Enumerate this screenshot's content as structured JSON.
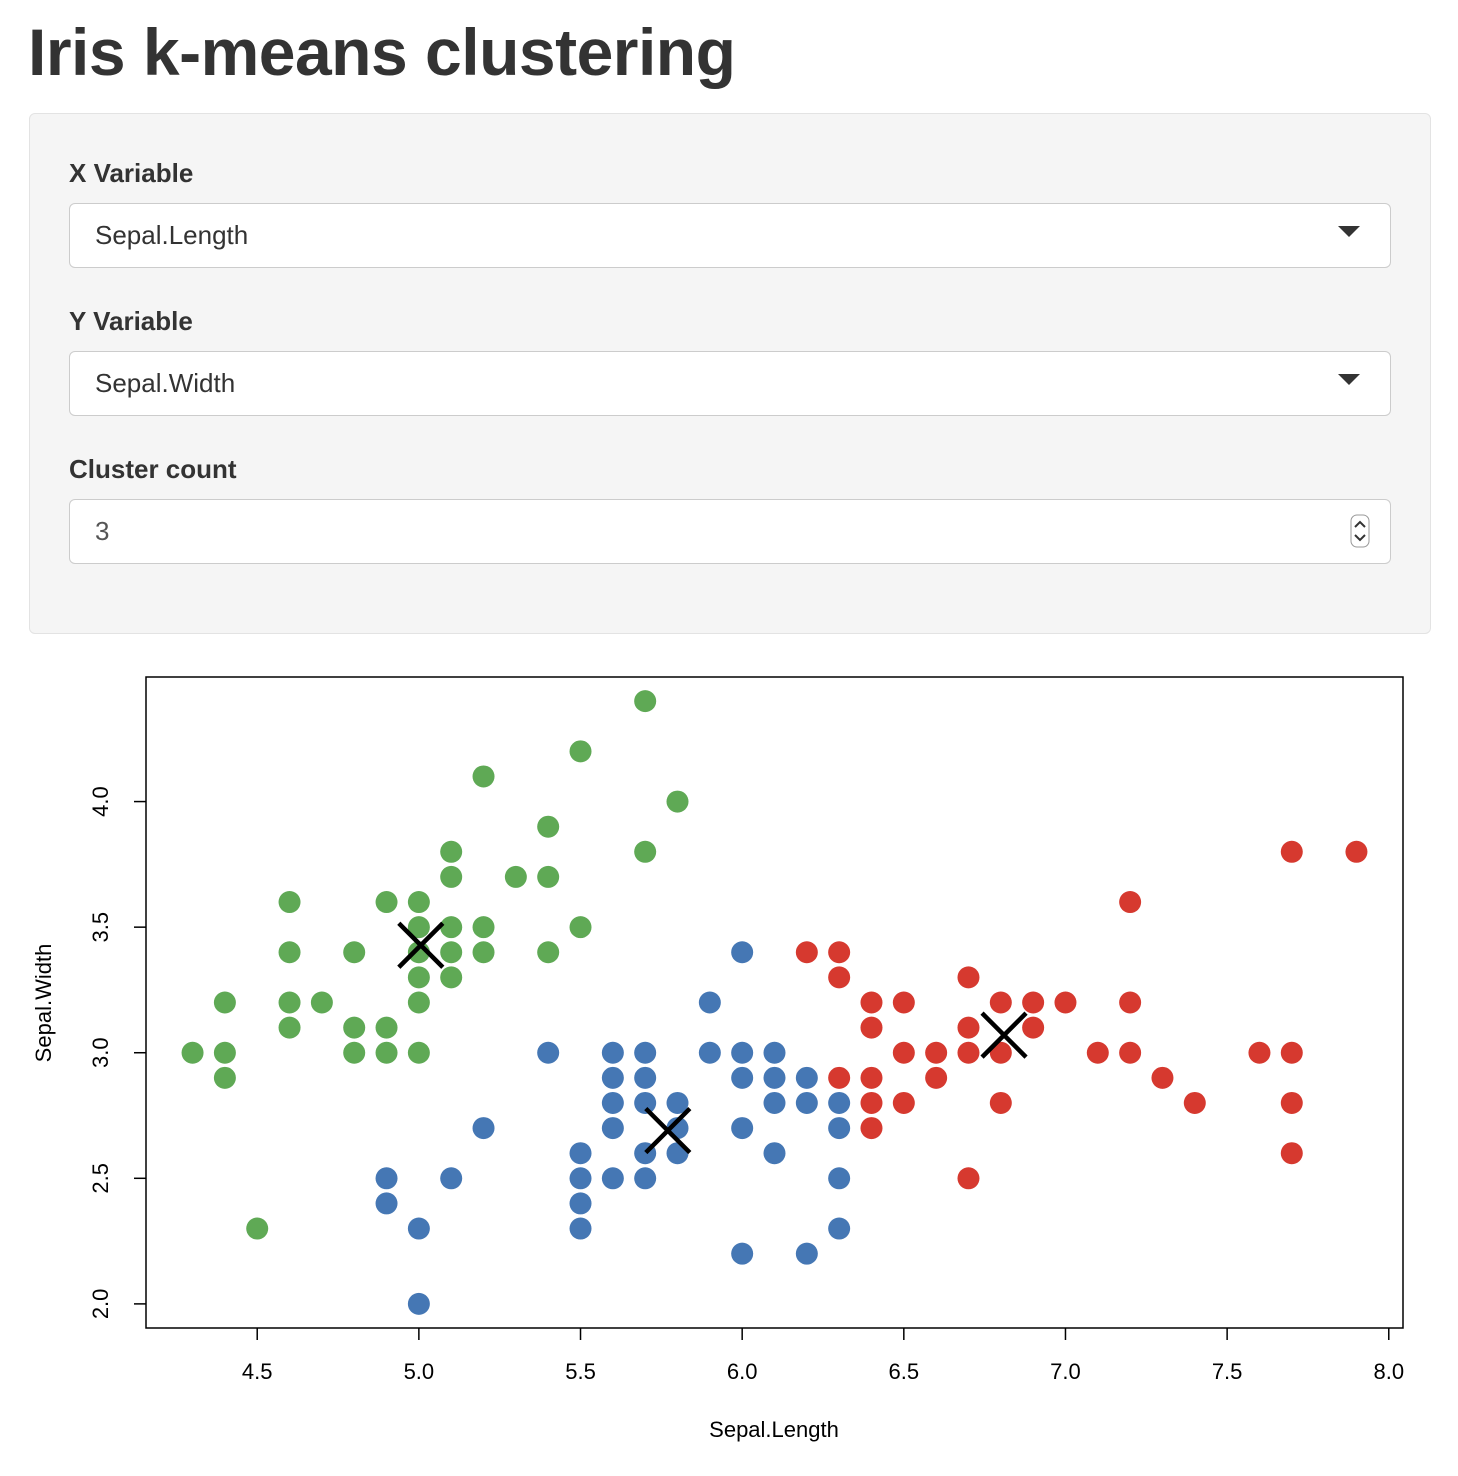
{
  "header": {
    "title": "Iris k-means clustering"
  },
  "controls": [
    {
      "label": "X Variable",
      "value": "Sepal.Length"
    },
    {
      "label": "Y Variable",
      "value": "Sepal.Width"
    },
    {
      "label": "Cluster count",
      "value": "3"
    }
  ],
  "chart_data": {
    "type": "scatter",
    "x_label": "Sepal.Length",
    "y_label": "Sepal.Width",
    "xlim": [
      4.156,
      8.044
    ],
    "ylim": [
      1.904,
      4.496
    ],
    "xticks": [
      4.5,
      {
        "value": 5,
        "label": "5.0"
      },
      5.5,
      {
        "value": 6,
        "label": "6.0"
      },
      6.5,
      {
        "value": 7,
        "label": "7.0"
      },
      7.5,
      {
        "value": 8,
        "label": "8.0"
      }
    ],
    "yticks": [
      {
        "value": 2,
        "label": "2.0"
      },
      2.5,
      {
        "value": 3,
        "label": "3.0"
      },
      3.5,
      {
        "value": 4,
        "label": "4.0"
      }
    ],
    "series": [
      {
        "color": "#5fa955",
        "marker": "circle",
        "x": [
          4.3,
          4.4,
          4.4,
          4.4,
          4.5,
          4.6,
          4.6,
          4.6,
          4.6,
          4.7,
          4.8,
          4.8,
          4.8,
          4.9,
          4.9,
          4.9,
          5.0,
          5.0,
          5.0,
          5.0,
          5.0,
          5.0,
          5.1,
          5.1,
          5.1,
          5.1,
          5.1,
          5.2,
          5.2,
          5.2,
          5.3,
          5.4,
          5.4,
          5.4,
          5.5,
          5.5,
          5.7,
          5.7,
          5.8
        ],
        "values": [
          3.0,
          3.0,
          3.2,
          2.9,
          2.3,
          3.6,
          3.4,
          3.2,
          3.1,
          3.2,
          3.4,
          3.1,
          3.0,
          3.6,
          3.1,
          3.0,
          3.6,
          3.5,
          3.4,
          3.3,
          3.2,
          3.0,
          3.8,
          3.7,
          3.5,
          3.4,
          3.3,
          4.1,
          3.5,
          3.4,
          3.7,
          3.9,
          3.7,
          3.4,
          4.2,
          3.5,
          4.4,
          3.8,
          4.0
        ]
      },
      {
        "color": "#4577b4",
        "marker": "circle",
        "x": [
          4.9,
          4.9,
          5.0,
          5.0,
          5.1,
          5.2,
          5.4,
          5.5,
          5.5,
          5.5,
          5.5,
          5.6,
          5.6,
          5.6,
          5.6,
          5.6,
          5.7,
          5.7,
          5.7,
          5.7,
          5.7,
          5.8,
          5.8,
          5.8,
          5.9,
          5.9,
          6.0,
          6.0,
          6.0,
          6.0,
          6.0,
          6.1,
          6.1,
          6.1,
          6.1,
          6.2,
          6.2,
          6.2,
          6.3,
          6.3,
          6.3,
          6.3
        ],
        "values": [
          2.5,
          2.4,
          2.3,
          2.0,
          2.5,
          2.7,
          3.0,
          2.6,
          2.5,
          2.4,
          2.3,
          3.0,
          2.9,
          2.8,
          2.7,
          2.5,
          3.0,
          2.9,
          2.8,
          2.6,
          2.5,
          2.8,
          2.7,
          2.6,
          3.2,
          3.0,
          3.4,
          3.0,
          2.9,
          2.7,
          2.2,
          3.0,
          2.9,
          2.8,
          2.6,
          2.9,
          2.8,
          2.2,
          2.8,
          2.7,
          2.5,
          2.3
        ]
      },
      {
        "color": "#d6392f",
        "marker": "circle",
        "x": [
          6.2,
          6.3,
          6.3,
          6.3,
          6.4,
          6.4,
          6.4,
          6.4,
          6.4,
          6.5,
          6.5,
          6.5,
          6.6,
          6.6,
          6.7,
          6.7,
          6.7,
          6.7,
          6.8,
          6.8,
          6.8,
          6.9,
          6.9,
          7.0,
          7.1,
          7.2,
          7.2,
          7.2,
          7.3,
          7.4,
          7.6,
          7.7,
          7.7,
          7.7,
          7.7,
          7.9
        ],
        "values": [
          3.4,
          3.4,
          3.3,
          2.9,
          3.2,
          3.1,
          2.9,
          2.8,
          2.7,
          3.2,
          3.0,
          2.8,
          3.0,
          2.9,
          3.3,
          3.1,
          3.0,
          2.5,
          3.2,
          3.0,
          2.8,
          3.2,
          3.1,
          3.2,
          3.0,
          3.6,
          3.2,
          3.0,
          2.9,
          2.8,
          3.0,
          3.8,
          3.0,
          2.8,
          2.6,
          3.8
        ]
      },
      {
        "color": "#000000",
        "marker": "cross",
        "x": [
          5.006,
          5.77,
          6.81
        ],
        "values": [
          3.428,
          2.69,
          3.07
        ]
      }
    ]
  }
}
